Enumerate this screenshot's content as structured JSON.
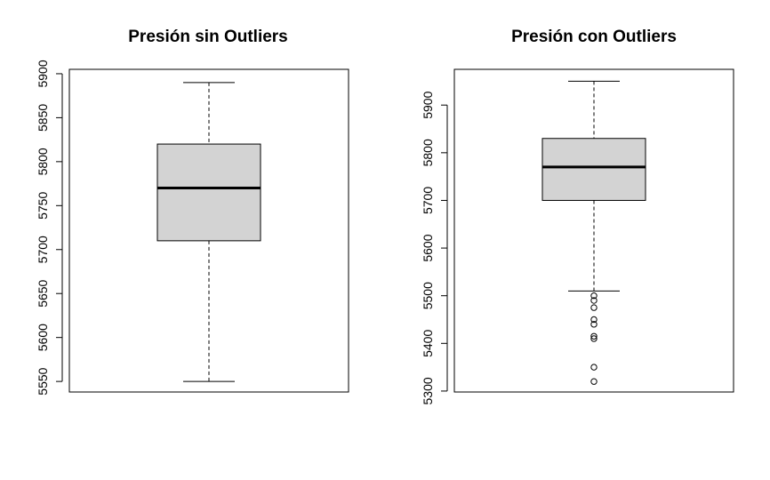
{
  "chart_data": [
    {
      "type": "boxplot",
      "title": "Presión sin Outliers",
      "ylim": [
        5538,
        5905
      ],
      "yticks": [
        5550,
        5600,
        5650,
        5700,
        5750,
        5800,
        5850,
        5900
      ],
      "box": {
        "whisker_low": 5550,
        "q1": 5710,
        "median": 5770,
        "q3": 5820,
        "whisker_high": 5890
      },
      "outliers": []
    },
    {
      "type": "boxplot",
      "title": "Presión con Outliers",
      "ylim": [
        5298,
        5975
      ],
      "yticks": [
        5300,
        5400,
        5500,
        5600,
        5700,
        5800,
        5900
      ],
      "box": {
        "whisker_low": 5510,
        "q1": 5700,
        "median": 5770,
        "q3": 5830,
        "whisker_high": 5950
      },
      "outliers": [
        5500,
        5490,
        5475,
        5450,
        5440,
        5415,
        5410,
        5350,
        5320
      ]
    }
  ],
  "colors": {
    "box_fill": "#d3d3d3",
    "line": "#000000"
  }
}
